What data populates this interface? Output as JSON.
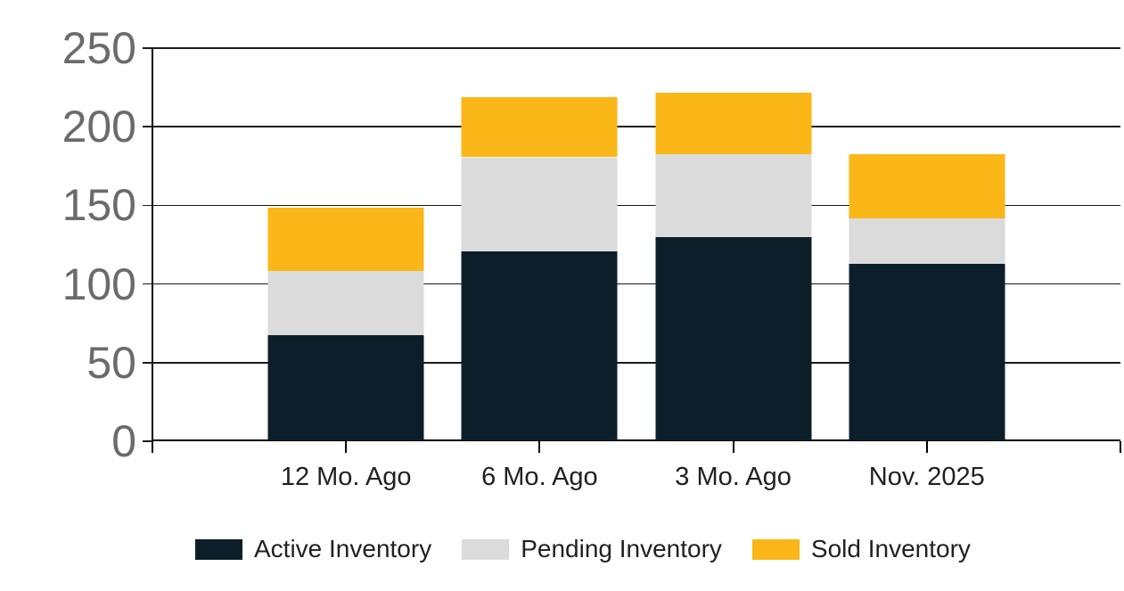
{
  "chart_data": {
    "type": "bar",
    "stacked": true,
    "title": "",
    "xlabel": "",
    "ylabel": "",
    "categories": [
      "12 Mo. Ago",
      "6 Mo. Ago",
      "3 Mo. Ago",
      "Nov. 2025"
    ],
    "series": [
      {
        "name": "Active Inventory",
        "color": "#0C1E2A",
        "values": [
          67,
          120,
          129,
          112
        ]
      },
      {
        "name": "Pending Inventory",
        "color": "#DBDBDB",
        "values": [
          41,
          60,
          53,
          29
        ]
      },
      {
        "name": "Sold Inventory",
        "color": "#FBB617",
        "values": [
          40,
          38,
          39,
          41
        ]
      }
    ],
    "totals": [
      148,
      218,
      221,
      182
    ],
    "ylim": [
      0,
      250
    ],
    "yticks": [
      0,
      50,
      100,
      150,
      200,
      250
    ],
    "grid": true,
    "legend_position": "bottom"
  },
  "colors": {
    "background": "#FFFFFF",
    "axis": "#000000",
    "gridline": "#1A1A1A",
    "y_tick_label": "#6B6B6B",
    "x_tick_label": "#231F20",
    "legend_text": "#231F20"
  }
}
